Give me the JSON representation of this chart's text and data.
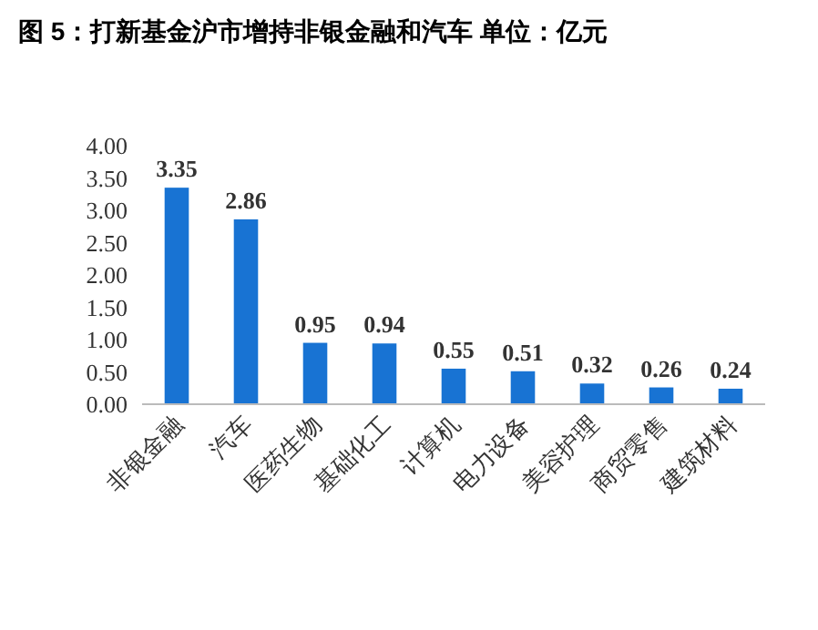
{
  "chart_data": {
    "type": "bar",
    "title": "图 5：打新基金沪市增持非银金融和汽车 单位：亿元",
    "categories": [
      "非银金融",
      "汽车",
      "医药生物",
      "基础化工",
      "计算机",
      "电力设备",
      "美容护理",
      "商贸零售",
      "建筑材料"
    ],
    "values": [
      3.35,
      2.86,
      0.95,
      0.94,
      0.55,
      0.51,
      0.32,
      0.26,
      0.24
    ],
    "color": "#1873d3",
    "data_labels": true,
    "ylim": [
      0,
      4
    ],
    "yticks": [
      {
        "value": 0,
        "label": "0.00"
      },
      {
        "value": 0.5,
        "label": "0.50"
      },
      {
        "value": 1,
        "label": "1.00"
      },
      {
        "value": 1.5,
        "label": "1.50"
      },
      {
        "value": 2,
        "label": "2.00"
      },
      {
        "value": 2.5,
        "label": "2.50"
      },
      {
        "value": 3,
        "label": "3.00"
      },
      {
        "value": 3.5,
        "label": "3.50"
      },
      {
        "value": 4,
        "label": "4.00"
      }
    ]
  }
}
